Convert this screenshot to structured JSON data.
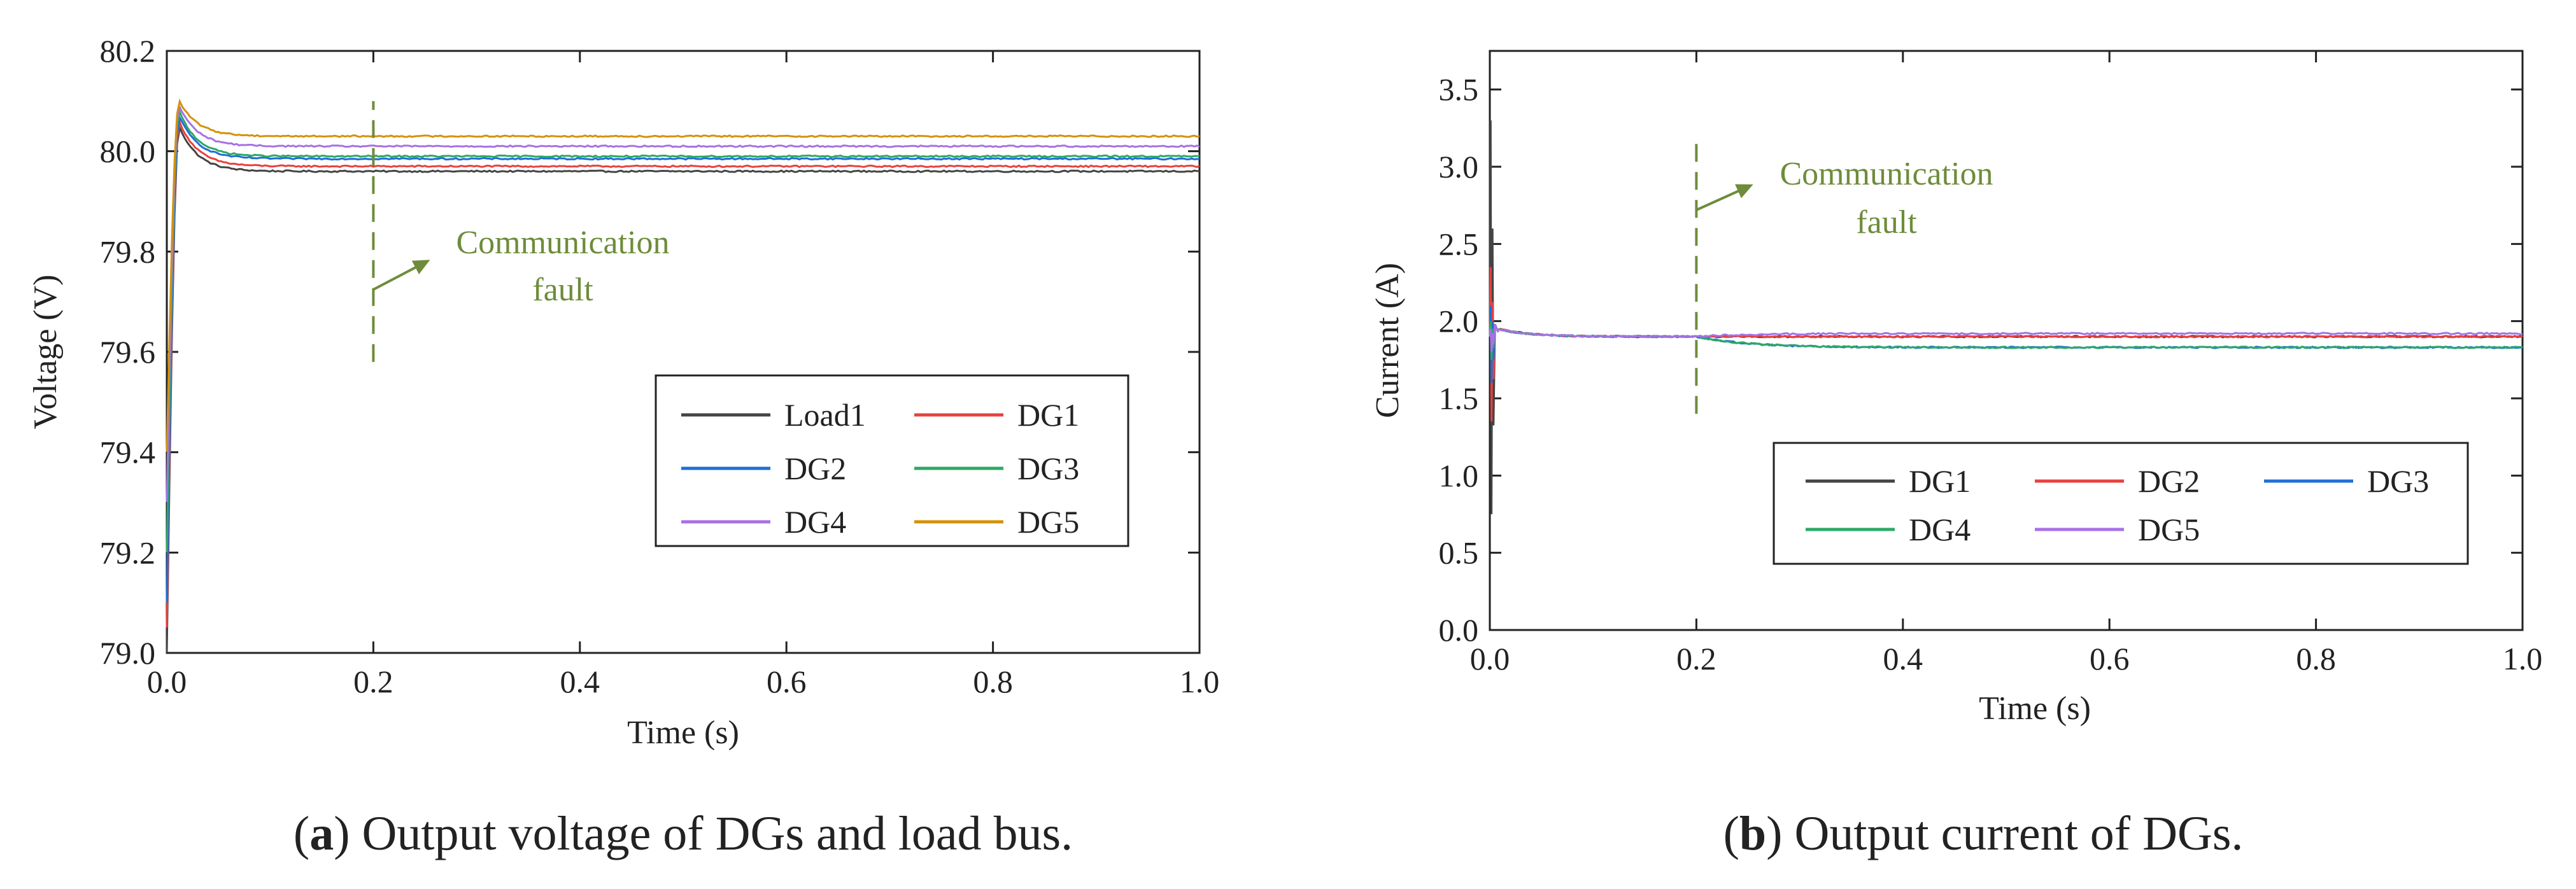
{
  "chart_data": [
    {
      "type": "line",
      "id": "a",
      "caption_letter": "a",
      "caption_text": " Output voltage of DGs and load bus.",
      "xlabel": "Time (s)",
      "ylabel": "Voltage (V)",
      "xlim": [
        0,
        1.0
      ],
      "ylim": [
        79.0,
        80.2
      ],
      "xticks": [
        "0.0",
        "0.2",
        "0.4",
        "0.6",
        "0.8",
        "1.0"
      ],
      "yticks": [
        "79.0",
        "79.2",
        "79.4",
        "79.6",
        "79.8",
        "80.0",
        "80.2"
      ],
      "legend": {
        "position": "lower-right",
        "columns": 2
      },
      "annotation": {
        "text_line1": "Communication",
        "text_line2": "fault",
        "x": 0.2,
        "y_from": 79.58,
        "y_to": 80.1
      },
      "series": [
        {
          "name": "Load1",
          "color": "#444444",
          "initial": 79.0,
          "peak": 80.05,
          "steady": 79.96
        },
        {
          "name": "DG1",
          "color": "#e8413f",
          "initial": 79.05,
          "peak": 80.06,
          "steady": 79.97
        },
        {
          "name": "DG2",
          "color": "#1f6fd6",
          "initial": 79.1,
          "peak": 80.07,
          "steady": 79.985
        },
        {
          "name": "DG3",
          "color": "#2ea866",
          "initial": 79.2,
          "peak": 80.08,
          "steady": 79.99
        },
        {
          "name": "DG4",
          "color": "#a771e6",
          "initial": 79.3,
          "peak": 80.09,
          "steady": 80.01
        },
        {
          "name": "DG5",
          "color": "#d4920a",
          "initial": 79.4,
          "peak": 80.1,
          "steady": 80.03
        }
      ]
    },
    {
      "type": "line",
      "id": "b",
      "caption_letter": "b",
      "caption_text": " Output current of DGs.",
      "xlabel": "Time (s)",
      "ylabel": "Current (A)",
      "xlim": [
        0,
        1.0
      ],
      "ylim": [
        0.0,
        3.75
      ],
      "xticks": [
        "0.0",
        "0.2",
        "0.4",
        "0.6",
        "0.8",
        "1.0"
      ],
      "yticks": [
        "0.0",
        "0.5",
        "1.0",
        "1.5",
        "2.0",
        "2.5",
        "3.0",
        "3.5"
      ],
      "legend": {
        "position": "lower-right",
        "columns": 3
      },
      "annotation": {
        "text_line1": "Communication",
        "text_line2": "fault",
        "x": 0.2,
        "y_from": 1.4,
        "y_to": 3.2
      },
      "series": [
        {
          "name": "DG1",
          "color": "#444444",
          "spike_hi": 3.3,
          "spike_lo": 0.75,
          "settle": 1.9,
          "final": 1.9
        },
        {
          "name": "DG2",
          "color": "#e8413f",
          "spike_hi": 2.35,
          "spike_lo": 1.35,
          "settle": 1.9,
          "final": 1.9
        },
        {
          "name": "DG3",
          "color": "#1f6fd6",
          "spike_hi": 2.1,
          "spike_lo": 1.6,
          "settle": 1.9,
          "final": 1.83
        },
        {
          "name": "DG4",
          "color": "#2ea866",
          "spike_hi": 2.0,
          "spike_lo": 1.75,
          "settle": 1.9,
          "final": 1.83
        },
        {
          "name": "DG5",
          "color": "#a771e6",
          "spike_hi": 1.95,
          "spike_lo": 1.8,
          "settle": 1.9,
          "final": 1.92
        }
      ]
    }
  ]
}
